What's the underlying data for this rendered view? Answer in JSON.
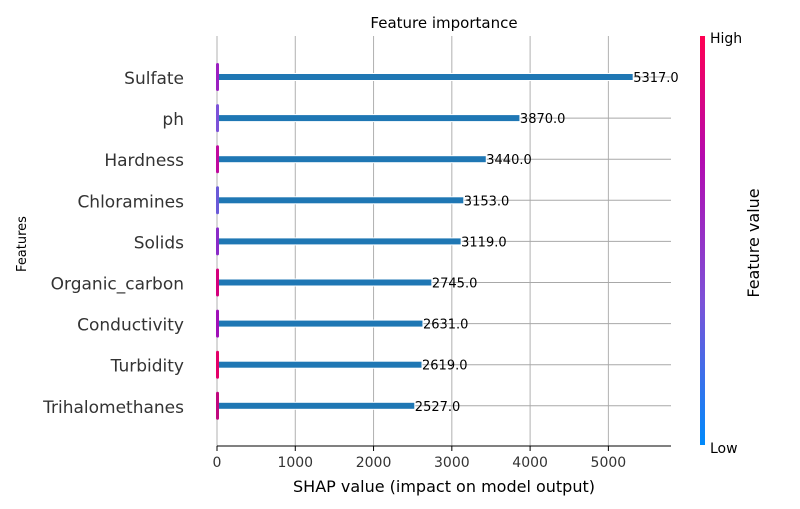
{
  "chart_data": {
    "type": "bar",
    "title": "Feature importance",
    "xlabel": "SHAP value (impact on model output)",
    "ylabel": "Features",
    "categories": [
      "Sulfate",
      "ph",
      "Hardness",
      "Chloramines",
      "Solids",
      "Organic_carbon",
      "Conductivity",
      "Turbidity",
      "Trihalomethanes"
    ],
    "values": [
      5317.0,
      3870.0,
      3440.0,
      3153.0,
      3119.0,
      2745.0,
      2631.0,
      2619.0,
      2527.0
    ],
    "value_labels": [
      "5317.0",
      "3870.0",
      "3440.0",
      "3153.0",
      "3119.0",
      "2745.0",
      "2631.0",
      "2619.0",
      "2527.0"
    ],
    "xticks": [
      0,
      1000,
      2000,
      3000,
      4000,
      5000
    ],
    "xtick_labels": [
      "0",
      "1000",
      "2000",
      "3000",
      "4000",
      "5000"
    ],
    "xlim": [
      0,
      5800
    ],
    "grid": true,
    "bar_color": "#1f77b4",
    "colorbar": {
      "label": "Feature value",
      "high_label": "High",
      "low_label": "Low",
      "colors": [
        "#008afb",
        "#7c52d8",
        "#b40ab0",
        "#ff0052"
      ]
    }
  }
}
